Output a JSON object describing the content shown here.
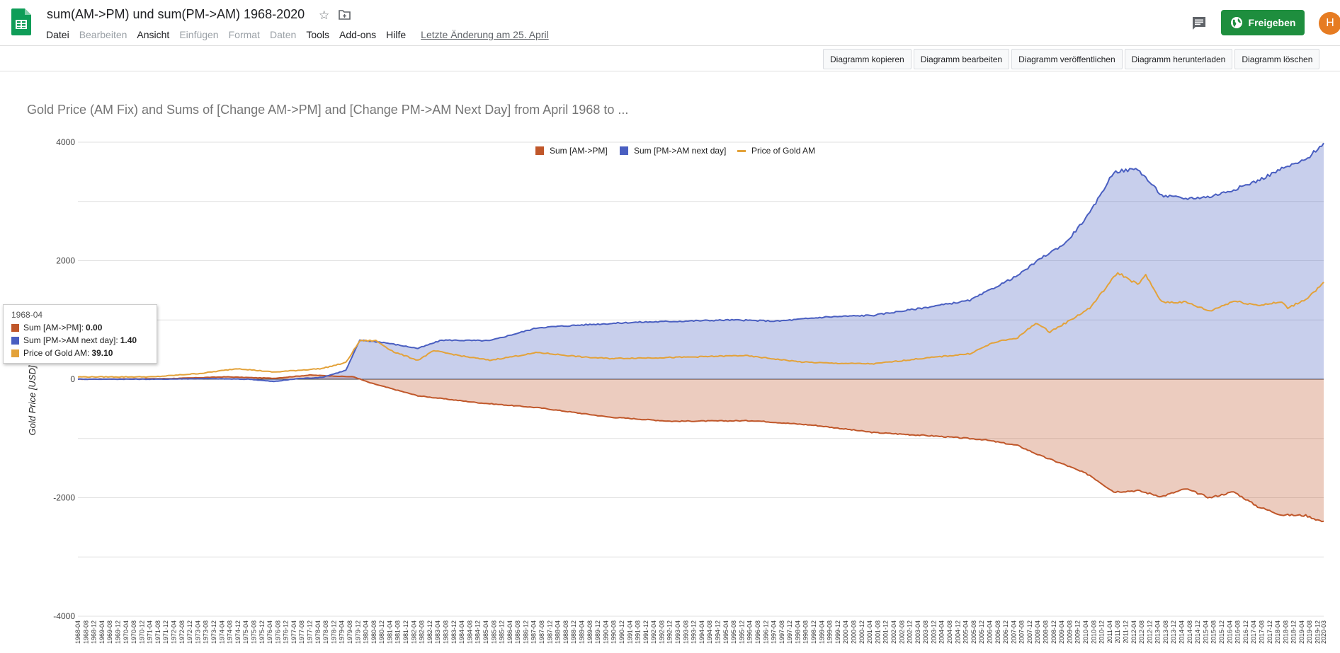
{
  "app": {
    "title": "sum(AM->PM) und sum(PM->AM) 1968-2020",
    "menus": [
      {
        "label": "Datei",
        "enabled": true
      },
      {
        "label": "Bearbeiten",
        "enabled": false
      },
      {
        "label": "Ansicht",
        "enabled": true
      },
      {
        "label": "Einfügen",
        "enabled": false
      },
      {
        "label": "Format",
        "enabled": false
      },
      {
        "label": "Daten",
        "enabled": false
      },
      {
        "label": "Tools",
        "enabled": true
      },
      {
        "label": "Add-ons",
        "enabled": true
      },
      {
        "label": "Hilfe",
        "enabled": true
      }
    ],
    "last_edit": "Letzte Änderung am 25. April",
    "share_label": "Freigeben",
    "avatar_letter": "H",
    "brand_color": "#1e8e3e",
    "icons": [
      "sheets-logo-icon",
      "star-icon",
      "folder-icon",
      "comment-icon",
      "globe-icon"
    ]
  },
  "chart_toolbar": {
    "buttons": [
      "Diagramm kopieren",
      "Diagramm bearbeiten",
      "Diagramm veröffentlichen",
      "Diagramm herunterladen",
      "Diagramm löschen"
    ]
  },
  "tooltip": {
    "title": "1968-04",
    "rows": [
      {
        "label": "Sum [AM->PM]",
        "value": "0.00"
      },
      {
        "label": "Sum [PM->AM next day]",
        "value": "1.40"
      },
      {
        "label": "Price of Gold AM",
        "value": "39.10"
      }
    ]
  },
  "chart_data": {
    "type": "area",
    "title": "Gold Price (AM Fix) and Sums of [Change AM->PM] and [Change PM->AM Next Day] from April 1968 to ...",
    "ylabel": "Gold Price [USD]",
    "xlabel": "",
    "ylim": [
      -4000,
      4000
    ],
    "yticks": [
      4000,
      2000,
      0,
      -2000,
      -4000
    ],
    "grid": true,
    "legend_position": "top",
    "x_range": [
      "1968-04",
      "2020-03"
    ],
    "x_tick_interval_months": 4,
    "series": [
      {
        "name": "Sum [AM->PM]",
        "kind": "area",
        "color": "#c0572a",
        "anchors": [
          [
            "1968-04",
            0
          ],
          [
            "1972-01",
            10
          ],
          [
            "1974-06",
            40
          ],
          [
            "1976-06",
            15
          ],
          [
            "1977-12",
            70
          ],
          [
            "1979-10",
            40
          ],
          [
            "1980-06",
            -60
          ],
          [
            "1982-06",
            -280
          ],
          [
            "1985-01",
            -400
          ],
          [
            "1987-06",
            -480
          ],
          [
            "1990-06",
            -640
          ],
          [
            "1993-01",
            -710
          ],
          [
            "1996-06",
            -700
          ],
          [
            "1999-01",
            -780
          ],
          [
            "2001-06",
            -900
          ],
          [
            "2004-01",
            -960
          ],
          [
            "2006-01",
            -1020
          ],
          [
            "2007-06",
            -1120
          ],
          [
            "2008-06",
            -1300
          ],
          [
            "2009-06",
            -1450
          ],
          [
            "2010-06",
            -1620
          ],
          [
            "2011-06",
            -1900
          ],
          [
            "2012-06",
            -1880
          ],
          [
            "2013-06",
            -1980
          ],
          [
            "2014-06",
            -1850
          ],
          [
            "2015-06",
            -2000
          ],
          [
            "2016-06",
            -1900
          ],
          [
            "2017-06",
            -2150
          ],
          [
            "2018-06",
            -2290
          ],
          [
            "2019-06",
            -2300
          ],
          [
            "2020-03",
            -2410
          ]
        ]
      },
      {
        "name": "Sum [PM->AM next day]",
        "kind": "area",
        "color": "#4a5fc1",
        "anchors": [
          [
            "1968-04",
            1.4
          ],
          [
            "1971-06",
            0
          ],
          [
            "1973-06",
            10
          ],
          [
            "1975-06",
            0
          ],
          [
            "1976-06",
            -40
          ],
          [
            "1977-06",
            10
          ],
          [
            "1978-06",
            30
          ],
          [
            "1979-06",
            150
          ],
          [
            "1980-01",
            660
          ],
          [
            "1981-01",
            620
          ],
          [
            "1982-06",
            520
          ],
          [
            "1983-06",
            660
          ],
          [
            "1985-06",
            650
          ],
          [
            "1987-06",
            870
          ],
          [
            "1989-06",
            920
          ],
          [
            "1991-06",
            960
          ],
          [
            "1995-06",
            1000
          ],
          [
            "1997-06",
            980
          ],
          [
            "1999-06",
            1050
          ],
          [
            "2001-06",
            1080
          ],
          [
            "2003-06",
            1200
          ],
          [
            "2005-06",
            1330
          ],
          [
            "2006-06",
            1540
          ],
          [
            "2007-06",
            1750
          ],
          [
            "2008-06",
            2050
          ],
          [
            "2009-06",
            2300
          ],
          [
            "2010-06",
            2800
          ],
          [
            "2011-06",
            3500
          ],
          [
            "2012-06",
            3550
          ],
          [
            "2013-06",
            3100
          ],
          [
            "2014-06",
            3050
          ],
          [
            "2015-06",
            3080
          ],
          [
            "2016-06",
            3200
          ],
          [
            "2017-06",
            3350
          ],
          [
            "2018-06",
            3550
          ],
          [
            "2019-06",
            3700
          ],
          [
            "2020-03",
            3990
          ]
        ]
      },
      {
        "name": "Price of Gold AM",
        "kind": "line",
        "color": "#e3a23a",
        "anchors": [
          [
            "1968-04",
            39.1
          ],
          [
            "1971-06",
            40
          ],
          [
            "1973-06",
            100
          ],
          [
            "1974-12",
            180
          ],
          [
            "1976-06",
            120
          ],
          [
            "1978-06",
            180
          ],
          [
            "1979-06",
            280
          ],
          [
            "1980-01",
            650
          ],
          [
            "1980-09",
            650
          ],
          [
            "1981-06",
            460
          ],
          [
            "1982-06",
            320
          ],
          [
            "1983-02",
            480
          ],
          [
            "1984-06",
            380
          ],
          [
            "1985-06",
            320
          ],
          [
            "1987-06",
            450
          ],
          [
            "1989-06",
            370
          ],
          [
            "1990-06",
            350
          ],
          [
            "1993-06",
            370
          ],
          [
            "1996-01",
            400
          ],
          [
            "1998-06",
            290
          ],
          [
            "1999-09",
            270
          ],
          [
            "2001-06",
            260
          ],
          [
            "2003-06",
            350
          ],
          [
            "2005-06",
            430
          ],
          [
            "2006-06",
            620
          ],
          [
            "2007-06",
            700
          ],
          [
            "2008-03",
            950
          ],
          [
            "2008-10",
            800
          ],
          [
            "2009-06",
            950
          ],
          [
            "2010-06",
            1200
          ],
          [
            "2011-08",
            1800
          ],
          [
            "2012-06",
            1600
          ],
          [
            "2012-10",
            1750
          ],
          [
            "2013-06",
            1300
          ],
          [
            "2014-06",
            1300
          ],
          [
            "2015-06",
            1150
          ],
          [
            "2016-06",
            1320
          ],
          [
            "2017-06",
            1250
          ],
          [
            "2018-06",
            1300
          ],
          [
            "2018-09",
            1200
          ],
          [
            "2019-06",
            1350
          ],
          [
            "2020-03",
            1620
          ]
        ]
      }
    ]
  }
}
